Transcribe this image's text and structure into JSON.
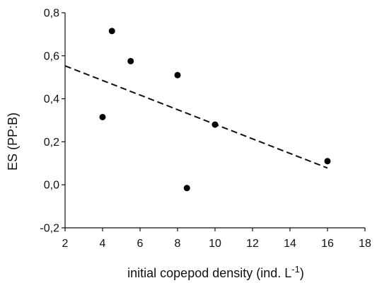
{
  "chart_data": {
    "type": "scatter",
    "xlabel_main": "initial copepod density (ind. L",
    "xlabel_sup": "-1",
    "xlabel_close": ")",
    "ylabel": "ES (PP:B)",
    "xlim": [
      2,
      18
    ],
    "ylim": [
      -0.2,
      0.8
    ],
    "x_ticks": [
      "2",
      "4",
      "6",
      "8",
      "10",
      "12",
      "14",
      "16",
      "18"
    ],
    "y_ticks": [
      "-0,2",
      "0,0",
      "0,2",
      "0,4",
      "0,6",
      "0,8"
    ],
    "grid": false,
    "series": [
      {
        "points": [
          {
            "x": 4,
            "y": 0.315
          },
          {
            "x": 4.5,
            "y": 0.715
          },
          {
            "x": 5.5,
            "y": 0.575
          },
          {
            "x": 8,
            "y": 0.51
          },
          {
            "x": 8.5,
            "y": -0.015
          },
          {
            "x": 10,
            "y": 0.28
          },
          {
            "x": 16,
            "y": 0.11
          }
        ]
      }
    ],
    "trend_line": {
      "style": "dashed",
      "x": [
        2,
        16
      ],
      "y": [
        0.553,
        0.078
      ]
    }
  }
}
